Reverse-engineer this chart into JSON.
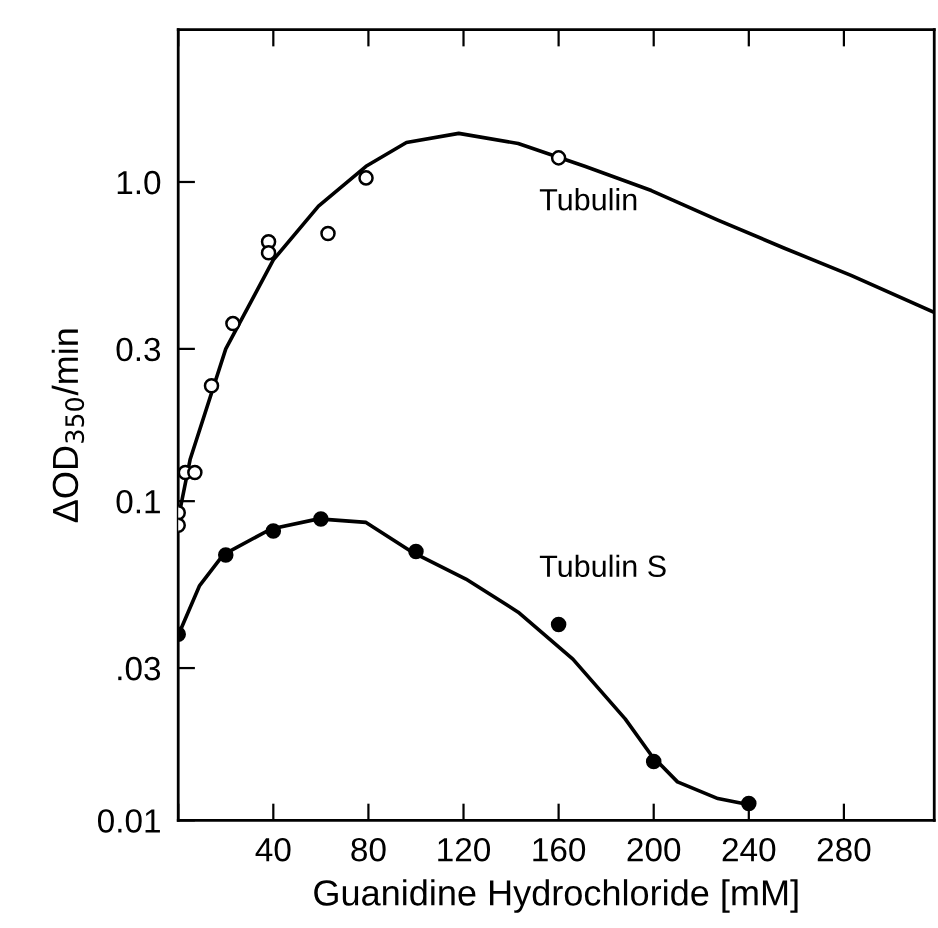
{
  "chart_data": {
    "type": "scatter",
    "xlabel": "Guanidine Hydrochloride [mM]",
    "ylabel": "ΔOD$_{350}$/min",
    "log": "y",
    "xlim": [
      0,
      318
    ],
    "ylim": [
      0.01,
      3
    ],
    "xticks": [
      {
        "value": 0,
        "label": null
      },
      40,
      80,
      120,
      160,
      200,
      240,
      280
    ],
    "yticks": [
      0.01,
      {
        "value": 0.03,
        "label": ".03"
      },
      0.1,
      0.3,
      {
        "value": 1,
        "label": "1.0"
      }
    ],
    "grid": false,
    "legend": false,
    "series": [
      {
        "name": "Tubulin",
        "color": "#000000",
        "marker": "open circle",
        "x": [
          0,
          0,
          3,
          7,
          14,
          23,
          38,
          38,
          63,
          79,
          160
        ],
        "values": [
          0.092,
          0.084,
          0.123,
          0.123,
          0.23,
          0.36,
          0.65,
          0.6,
          0.69,
          1.03,
          1.19
        ]
      },
      {
        "type": "line",
        "color": "#000000",
        "marker": "none",
        "x": [
          0,
          5,
          20,
          40,
          59,
          79,
          96,
          118,
          143,
          171,
          199,
          227,
          255,
          283,
          318
        ],
        "values": [
          0.088,
          0.135,
          0.3,
          0.57,
          0.84,
          1.12,
          1.33,
          1.42,
          1.32,
          1.12,
          0.94,
          0.76,
          0.62,
          0.51,
          0.39
        ]
      },
      {
        "name": "Tubulin S",
        "color": "#000000",
        "marker": "circle",
        "x": [
          0,
          20,
          40,
          60,
          100,
          160,
          200,
          240
        ],
        "values": [
          0.0383,
          0.0678,
          0.0806,
          0.0879,
          0.0695,
          0.0411,
          0.0153,
          0.0113
        ]
      },
      {
        "type": "line",
        "color": "#000000",
        "marker": "none",
        "x": [
          0,
          9,
          19,
          39,
          59,
          79,
          98,
          121,
          143,
          166,
          188,
          199,
          210,
          227,
          240
        ],
        "values": [
          0.038,
          0.0544,
          0.068,
          0.0818,
          0.088,
          0.0858,
          0.0695,
          0.057,
          0.0449,
          0.032,
          0.0208,
          0.016,
          0.0132,
          0.0117,
          0.0112
        ]
      }
    ]
  }
}
